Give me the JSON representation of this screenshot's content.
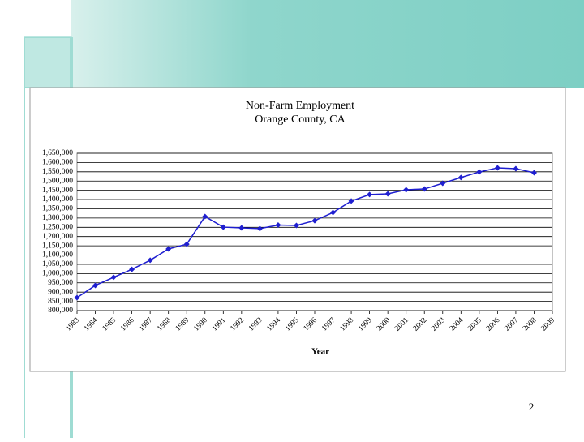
{
  "page_number": "2",
  "chart_data": {
    "type": "line",
    "title": "Non-Farm Employment",
    "subtitle": "Orange County, CA",
    "x_label": "Year",
    "x": [
      1983,
      1984,
      1985,
      1986,
      1987,
      1988,
      1989,
      1990,
      1991,
      1992,
      1993,
      1994,
      1995,
      1996,
      1997,
      1998,
      1999,
      2000,
      2001,
      2002,
      2003,
      2004,
      2005,
      2006,
      2007,
      2008
    ],
    "series": [
      {
        "name": "Non-Farm Employment",
        "color": "#1f1fd0",
        "values": [
          870000,
          936000,
          980000,
          1023000,
          1072000,
          1133000,
          1159000,
          1308000,
          1251000,
          1247000,
          1243000,
          1262000,
          1260000,
          1286000,
          1330000,
          1392000,
          1427000,
          1431000,
          1453000,
          1457000,
          1488000,
          1519000,
          1549000,
          1571000,
          1567000,
          1545000
        ]
      }
    ],
    "xlim": [
      1983,
      2009
    ],
    "xticks": [
      1983,
      1984,
      1985,
      1986,
      1987,
      1988,
      1989,
      1990,
      1991,
      1992,
      1993,
      1994,
      1995,
      1996,
      1997,
      1998,
      1999,
      2000,
      2001,
      2002,
      2003,
      2004,
      2005,
      2006,
      2007,
      2008,
      2009
    ],
    "ylim": [
      800000,
      1650000
    ],
    "yticks": [
      {
        "value": 800000,
        "label": "800,000"
      },
      {
        "value": 850000,
        "label": "850,000"
      },
      {
        "value": 900000,
        "label": "900,000"
      },
      {
        "value": 950000,
        "label": "950,000"
      },
      {
        "value": 1000000,
        "label": "1,000,000"
      },
      {
        "value": 1050000,
        "label": "1,050,000"
      },
      {
        "value": 1100000,
        "label": "1,100,000"
      },
      {
        "value": 1150000,
        "label": "1,150,000"
      },
      {
        "value": 1200000,
        "label": "1,200,000"
      },
      {
        "value": 1250000,
        "label": "1,250,000"
      },
      {
        "value": 1300000,
        "label": "1,300,000"
      },
      {
        "value": 1350000,
        "label": "1,350,000"
      },
      {
        "value": 1400000,
        "label": "1,400,000"
      },
      {
        "value": 1450000,
        "label": "1,450,000"
      },
      {
        "value": 1500000,
        "label": "1,500,000"
      },
      {
        "value": 1550000,
        "label": "1,550,000"
      },
      {
        "value": 1600000,
        "label": "1,600,000"
      },
      {
        "value": 1650000,
        "label": "1,650,000"
      }
    ],
    "grid": true
  }
}
